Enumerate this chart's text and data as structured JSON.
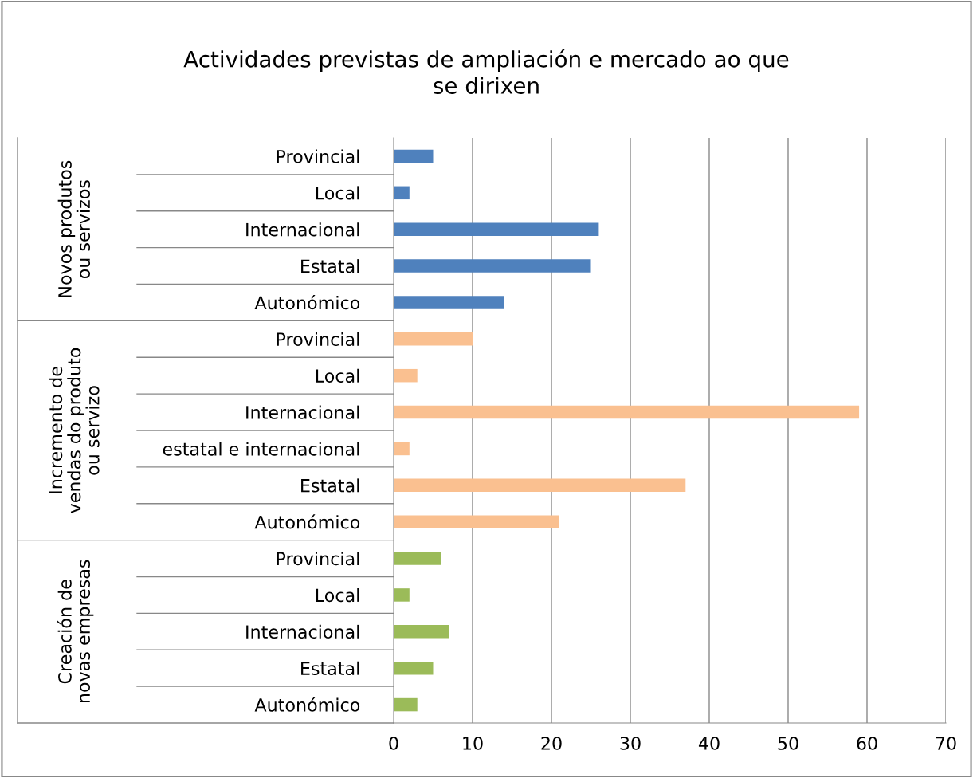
{
  "chart_data": {
    "type": "bar",
    "orientation": "horizontal",
    "title": "Actividades previstas de ampliación e mercado ao que\nse dirixen",
    "categories": [
      "Provincial",
      "Local",
      "Internacional",
      "Estatal",
      "Autonómico",
      "Provincial",
      "Local",
      "Internacional",
      "estatal e internacional",
      "Estatal",
      "Autonómico",
      "Provincial",
      "Local",
      "Internacional",
      "Estatal",
      "Autonómico"
    ],
    "series": [
      {
        "color": "#4f81bd",
        "values": [
          5,
          2,
          26,
          25,
          14,
          null,
          null,
          null,
          null,
          null,
          null,
          null,
          null,
          null,
          null,
          null
        ]
      },
      {
        "color": "#fac090",
        "values": [
          null,
          null,
          null,
          null,
          null,
          10,
          3,
          59,
          2,
          37,
          21,
          null,
          null,
          null,
          null,
          null
        ]
      },
      {
        "color": "#9bbb59",
        "values": [
          null,
          null,
          null,
          null,
          null,
          null,
          null,
          null,
          null,
          null,
          null,
          6,
          2,
          7,
          5,
          3
        ]
      }
    ],
    "xlim": [
      0,
      70
    ],
    "xticks": [
      0,
      10,
      20,
      30,
      40,
      50,
      60,
      70
    ],
    "annotations": [
      "Novos produtos\nou servizos",
      "Incremento de\nvendas do produto\nou servizo",
      "Creación de\nnovas empresas"
    ],
    "grid": "x",
    "legend": false
  }
}
